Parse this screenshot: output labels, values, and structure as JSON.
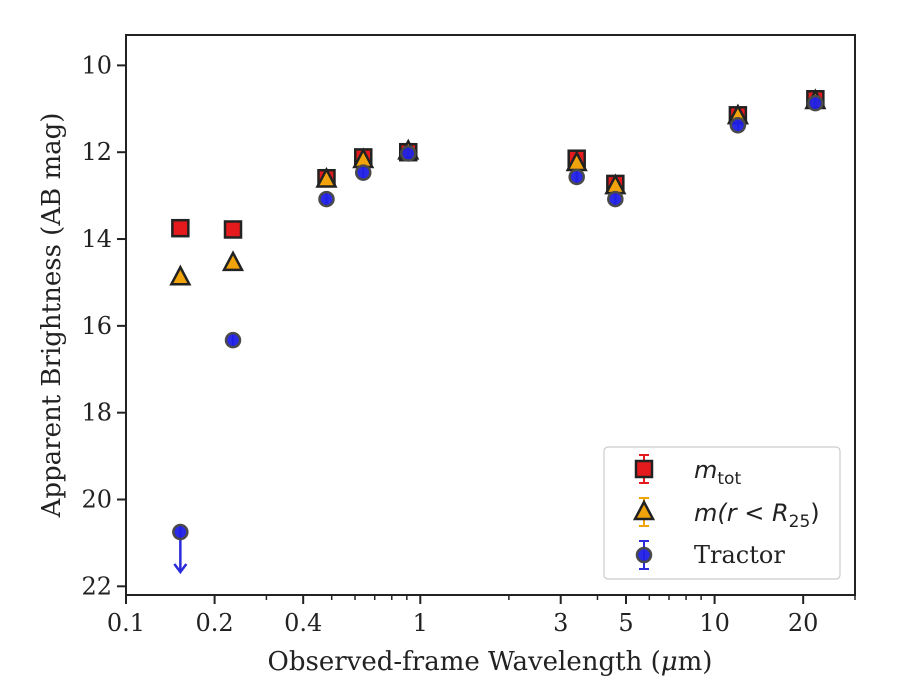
{
  "chart_data": {
    "type": "scatter",
    "x_scale": "log",
    "y_inverted": true,
    "xlim": [
      0.1,
      30
    ],
    "ylim": [
      22.2,
      9.3
    ],
    "xlabel_pre": "Observed-frame Wavelength (",
    "xlabel_mu": "μ",
    "xlabel_post": "m)",
    "ylabel": "Apparent Brightness (AB mag)",
    "x_ticks": [
      {
        "value": 0.1,
        "label": "0.1"
      },
      {
        "value": 0.2,
        "label": "0.2"
      },
      {
        "value": 0.4,
        "label": "0.4"
      },
      {
        "value": 1,
        "label": "1"
      },
      {
        "value": 3,
        "label": "3"
      },
      {
        "value": 5,
        "label": "5"
      },
      {
        "value": 10,
        "label": "10"
      },
      {
        "value": 20,
        "label": "20"
      }
    ],
    "x_minor_ticks": [
      0.3,
      0.5,
      0.6,
      0.7,
      0.8,
      0.9,
      2,
      4,
      6,
      7,
      8,
      9,
      30
    ],
    "y_ticks": [
      {
        "value": 10,
        "label": "10"
      },
      {
        "value": 12,
        "label": "12"
      },
      {
        "value": 14,
        "label": "14"
      },
      {
        "value": 16,
        "label": "16"
      },
      {
        "value": 18,
        "label": "18"
      },
      {
        "value": 20,
        "label": "20"
      },
      {
        "value": 22,
        "label": "22"
      }
    ],
    "grid": false,
    "legend_position": "lower-right",
    "series": [
      {
        "name": "m_tot",
        "legend_parts": {
          "m": "m",
          "sub": "tot"
        },
        "marker": "square",
        "fill": "#e41a1c",
        "edge": "#222222",
        "errcolor": "#e41a1c",
        "points": [
          {
            "x": 0.153,
            "y": 13.75
          },
          {
            "x": 0.231,
            "y": 13.78
          },
          {
            "x": 0.48,
            "y": 12.6
          },
          {
            "x": 0.64,
            "y": 12.12
          },
          {
            "x": 0.91,
            "y": 12.0
          },
          {
            "x": 3.4,
            "y": 12.15
          },
          {
            "x": 4.6,
            "y": 12.73
          },
          {
            "x": 12.0,
            "y": 11.15
          },
          {
            "x": 22.0,
            "y": 10.78
          }
        ]
      },
      {
        "name": "m(r < R_25)",
        "legend_parts": {
          "pre": "m(r < R",
          "sub": "25",
          "post": ")"
        },
        "marker": "triangle",
        "fill": "#f0a30a",
        "edge": "#222222",
        "errcolor": "#f0a30a",
        "points": [
          {
            "x": 0.153,
            "y": 14.88
          },
          {
            "x": 0.231,
            "y": 14.55
          },
          {
            "x": 0.48,
            "y": 12.63
          },
          {
            "x": 0.64,
            "y": 12.18
          },
          {
            "x": 0.91,
            "y": 11.98
          },
          {
            "x": 3.4,
            "y": 12.25
          },
          {
            "x": 4.6,
            "y": 12.78
          },
          {
            "x": 12.0,
            "y": 11.17
          },
          {
            "x": 22.0,
            "y": 10.82
          }
        ]
      },
      {
        "name": "Tractor",
        "marker": "circle",
        "fill": "#1f1fe6",
        "edge": "#4a4a4a",
        "errcolor": "#2b2bdb",
        "points": [
          {
            "x": 0.153,
            "y": 20.75,
            "upper_limit": true
          },
          {
            "x": 0.231,
            "y": 16.33
          },
          {
            "x": 0.48,
            "y": 13.08
          },
          {
            "x": 0.64,
            "y": 12.47
          },
          {
            "x": 0.91,
            "y": 12.03
          },
          {
            "x": 3.4,
            "y": 12.57
          },
          {
            "x": 4.6,
            "y": 13.08
          },
          {
            "x": 12.0,
            "y": 11.38
          },
          {
            "x": 22.0,
            "y": 10.87
          }
        ]
      }
    ]
  }
}
